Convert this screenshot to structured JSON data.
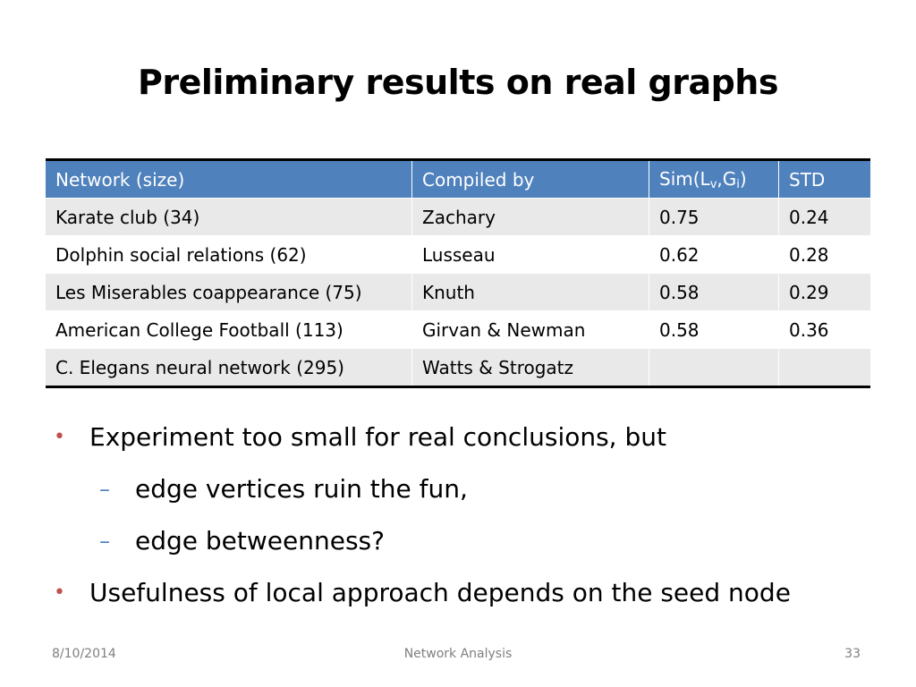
{
  "slide": {
    "title": "Preliminary results on real graphs"
  },
  "table": {
    "headers": {
      "network": "Network (size)",
      "compiled_by": "Compiled by",
      "sim_prefix": "Sim(L",
      "sim_sub_v": "v",
      "sim_comma": ",G",
      "sim_sub_i": "i",
      "sim_suffix": ")",
      "std": "STD"
    },
    "rows": [
      {
        "network": "Karate club (34)",
        "compiled_by": "Zachary",
        "sim": "0.75",
        "std": "0.24"
      },
      {
        "network": "Dolphin social relations (62)",
        "compiled_by": "Lusseau",
        "sim": "0.62",
        "std": "0.28"
      },
      {
        "network": "Les Miserables coappearance (75)",
        "compiled_by": "Knuth",
        "sim": "0.58",
        "std": "0.29"
      },
      {
        "network": "American College Football (113)",
        "compiled_by": "Girvan & Newman",
        "sim": "0.58",
        "std": "0.36"
      },
      {
        "network": "C. Elegans neural network (295)",
        "compiled_by": "Watts & Strogatz",
        "sim": "",
        "std": ""
      }
    ]
  },
  "bullets": [
    {
      "mark": "•",
      "text": "Experiment too small for real conclusions, but"
    },
    {
      "mark": "–",
      "text": "edge vertices ruin the fun,"
    },
    {
      "mark": "–",
      "text": "edge betweenness?"
    },
    {
      "mark": "•",
      "text": "Usefulness of local approach depends on the seed node"
    }
  ],
  "footer": {
    "date": "8/10/2014",
    "center": "Network Analysis",
    "page": "33"
  },
  "colors": {
    "header_blue": "#4f81bd",
    "bullet_red": "#c0504d",
    "dash_blue": "#4f81bd",
    "row_gray": "#e9e9e9",
    "footer_gray": "#7f7f7f"
  }
}
